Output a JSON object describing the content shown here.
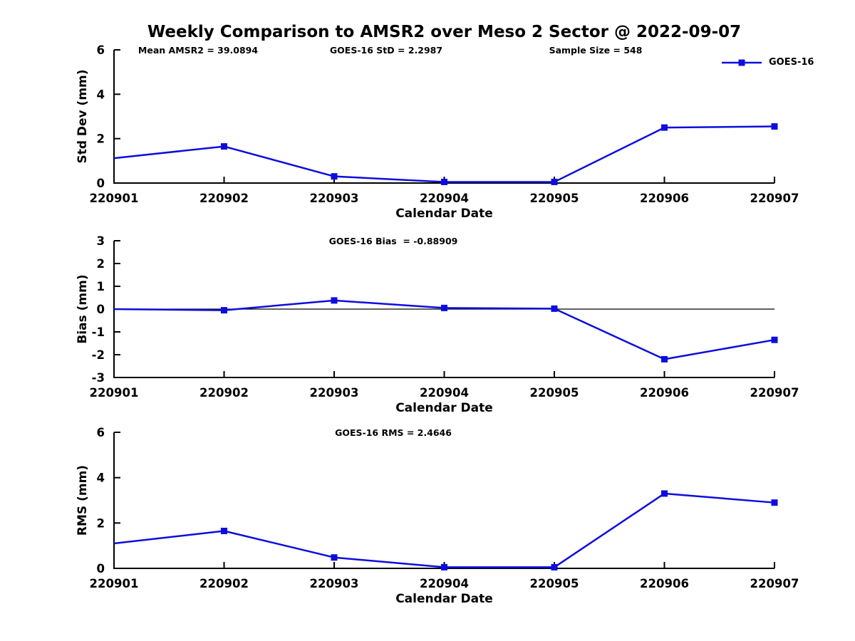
{
  "title": "Weekly Comparison to AMSR2 over Meso 2 Sector @ 2022-09-07",
  "legend": {
    "label": "GOES-16",
    "position": "top-right"
  },
  "colors": {
    "series": "#0d0ddd",
    "axis": "#000000",
    "zero_line": "#000000",
    "background": "#ffffff"
  },
  "chart_data": [
    {
      "type": "line",
      "name": "std-dev-subplot",
      "title": "",
      "annotations": [
        "Mean AMSR2 = 39.0894",
        "GOES-16 StD = 2.2987",
        "Sample Size = 548"
      ],
      "categories": [
        "220901",
        "220902",
        "220903",
        "220904",
        "220905",
        "220906",
        "220907"
      ],
      "series": [
        {
          "name": "GOES-16",
          "values": [
            1.12,
            1.65,
            0.3,
            0.05,
            0.05,
            2.5,
            2.55
          ]
        }
      ],
      "xlabel": "Calendar Date",
      "ylabel": "Std Dev (mm)",
      "ylim": [
        0,
        6
      ],
      "yticks": [
        0,
        2,
        4,
        6
      ],
      "grid": false,
      "zero_line": false,
      "marker": "square"
    },
    {
      "type": "line",
      "name": "bias-subplot",
      "title": "",
      "annotations": [
        "GOES-16 Bias  = -0.88909"
      ],
      "categories": [
        "220901",
        "220902",
        "220903",
        "220904",
        "220905",
        "220906",
        "220907"
      ],
      "series": [
        {
          "name": "GOES-16",
          "values": [
            0.0,
            -0.05,
            0.38,
            0.05,
            0.02,
            -2.2,
            -1.35
          ]
        }
      ],
      "xlabel": "Calendar Date",
      "ylabel": "Bias (mm)",
      "ylim": [
        -3,
        3
      ],
      "yticks": [
        -3,
        -2,
        -1,
        0,
        1,
        2,
        3
      ],
      "grid": false,
      "zero_line": true,
      "marker": "square"
    },
    {
      "type": "line",
      "name": "rms-subplot",
      "title": "",
      "annotations": [
        "GOES-16 RMS = 2.4646"
      ],
      "categories": [
        "220901",
        "220902",
        "220903",
        "220904",
        "220905",
        "220906",
        "220907"
      ],
      "series": [
        {
          "name": "GOES-16",
          "values": [
            1.1,
            1.65,
            0.48,
            0.05,
            0.05,
            3.3,
            2.9
          ]
        }
      ],
      "xlabel": "Calendar Date",
      "ylabel": "RMS (mm)",
      "ylim": [
        0,
        6
      ],
      "yticks": [
        0,
        2,
        4,
        6
      ],
      "grid": false,
      "zero_line": false,
      "marker": "square"
    }
  ]
}
